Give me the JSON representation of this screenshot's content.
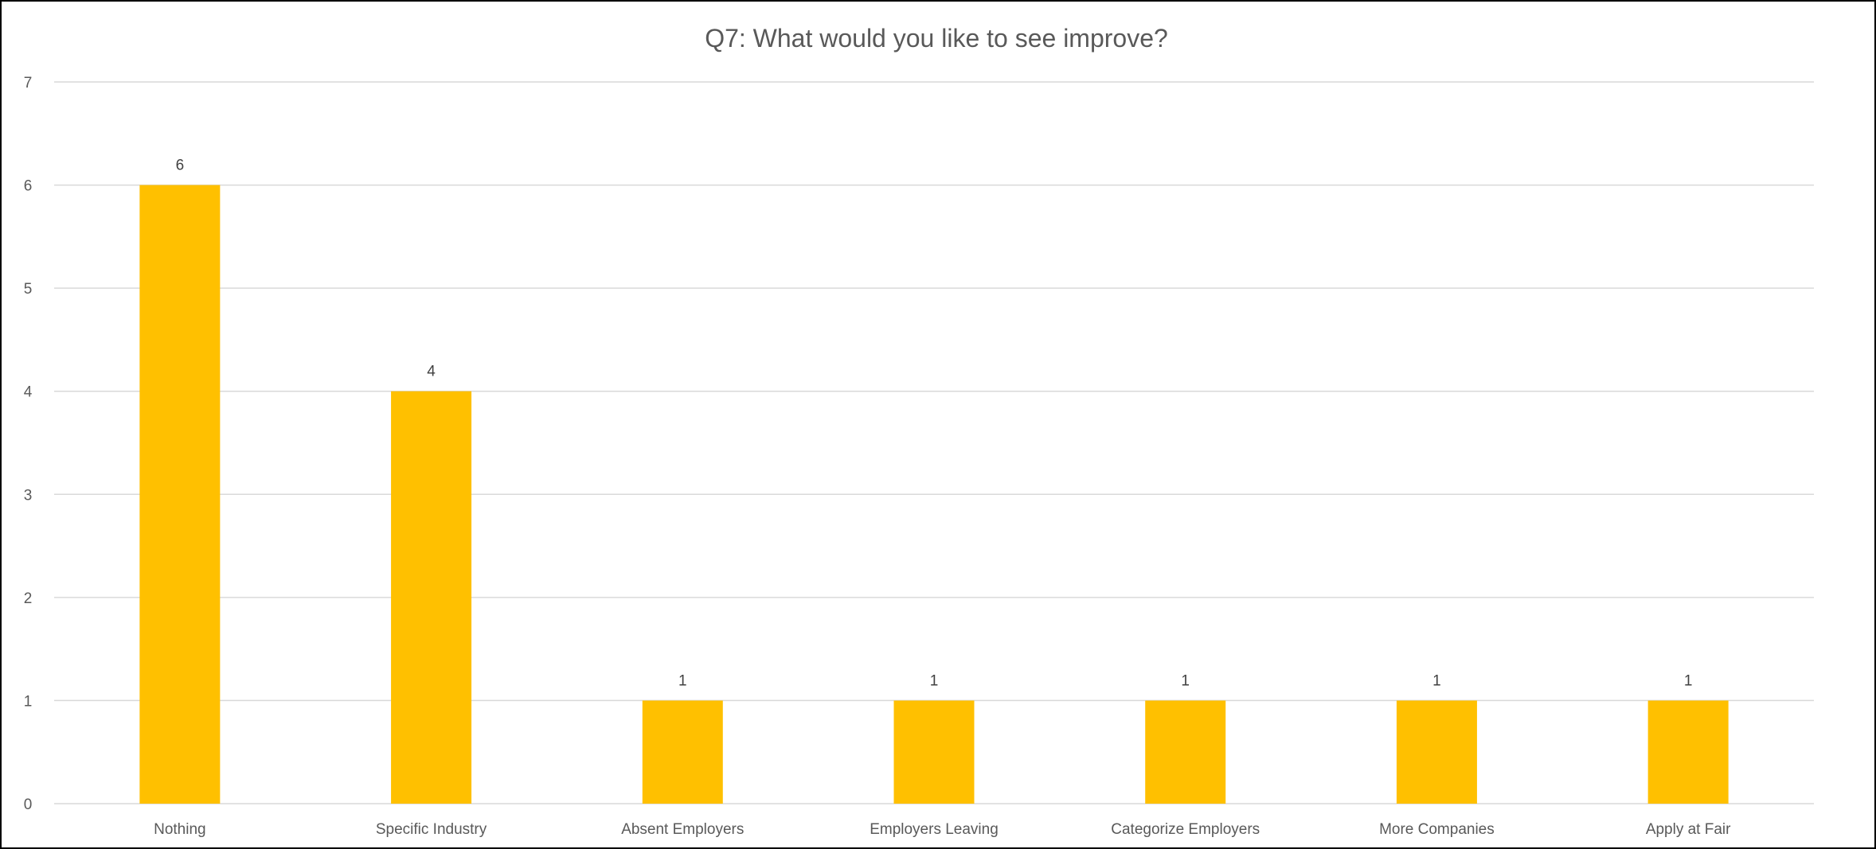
{
  "chart_data": {
    "type": "bar",
    "title": "Q7: What would you like to see improve?",
    "xlabel": "",
    "ylabel": "",
    "categories": [
      "Nothing",
      "Specific Industry",
      "Absent Employers",
      "Employers Leaving",
      "Categorize Employers",
      "More Companies",
      "Apply at Fair"
    ],
    "values": [
      6,
      4,
      1,
      1,
      1,
      1,
      1
    ],
    "ylim": [
      0,
      7
    ],
    "yticks": [
      0,
      1,
      2,
      3,
      4,
      5,
      6,
      7
    ],
    "grid": true,
    "legend": "none",
    "data_labels": true,
    "bar_color": "#FFC000",
    "grid_color": "#D9D9D9"
  }
}
